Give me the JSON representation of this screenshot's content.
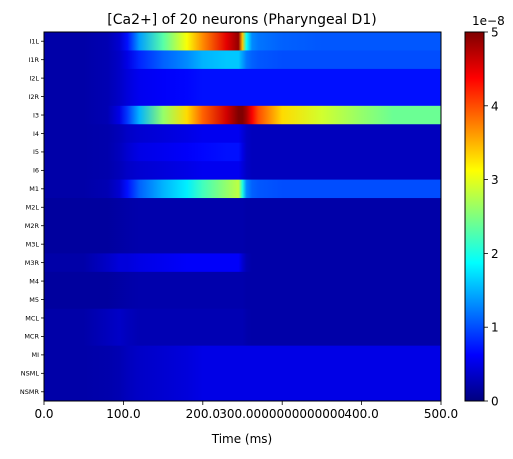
{
  "chart_data": {
    "type": "heatmap",
    "title": "[Ca2+] of 20 neurons (Pharyngeal D1)",
    "xlabel": "Time (ms)",
    "ylabel": "",
    "xlim": [
      0,
      500
    ],
    "x_ticks": [
      0,
      100,
      200,
      300,
      400,
      500
    ],
    "x_tick_labels": [
      "0.0",
      "100.0",
      "200.0",
      "300.0000000000000",
      "400.0",
      "500.0"
    ],
    "neurons": [
      "I1L",
      "I1R",
      "I2L",
      "I2R",
      "I3",
      "I4",
      "I5",
      "I6",
      "M1",
      "M2L",
      "M2R",
      "M3L",
      "M3R",
      "M4",
      "M5",
      "MCL",
      "MCR",
      "MI",
      "NSML",
      "NSMR"
    ],
    "colorbar": {
      "colormap": "jet",
      "range": [
        0,
        5e-08
      ],
      "ticks": [
        0,
        1,
        2,
        3,
        4,
        5
      ],
      "tick_labels": [
        "0",
        "1",
        "2",
        "3",
        "4",
        "5"
      ],
      "offset_label": "1e−8"
    },
    "value_scale": 1e-08,
    "sample_times_ms": [
      0,
      50,
      80,
      95,
      105,
      120,
      150,
      180,
      200,
      230,
      245,
      250,
      255,
      262,
      270,
      300,
      350,
      400,
      440,
      470,
      500
    ],
    "values": [
      [
        0.2,
        0.2,
        0.25,
        0.4,
        0.7,
        1.4,
        2.3,
        3.1,
        3.7,
        4.5,
        4.9,
        3.4,
        1.9,
        1.3,
        1.2,
        1.1,
        1.05,
        1.05,
        1.05,
        1.05,
        1.05
      ],
      [
        0.2,
        0.2,
        0.25,
        0.35,
        0.5,
        0.8,
        1.1,
        1.3,
        1.5,
        1.6,
        1.6,
        1.4,
        1.2,
        1.1,
        1.05,
        1.0,
        1.0,
        1.0,
        1.0,
        1.0,
        1.0
      ],
      [
        0.2,
        0.2,
        0.25,
        0.35,
        0.45,
        0.55,
        0.6,
        0.65,
        0.7,
        0.7,
        0.7,
        0.7,
        0.7,
        0.7,
        0.7,
        0.7,
        0.7,
        0.7,
        0.7,
        0.7,
        0.7
      ],
      [
        0.2,
        0.2,
        0.25,
        0.35,
        0.45,
        0.55,
        0.6,
        0.65,
        0.7,
        0.7,
        0.7,
        0.7,
        0.7,
        0.7,
        0.7,
        0.7,
        0.7,
        0.7,
        0.7,
        0.7,
        0.7
      ],
      [
        0.2,
        0.2,
        0.25,
        0.5,
        0.9,
        1.5,
        2.6,
        3.3,
        3.9,
        4.6,
        5.0,
        5.0,
        4.8,
        4.4,
        4.0,
        3.3,
        2.9,
        2.6,
        2.4,
        2.4,
        2.4
      ],
      [
        0.2,
        0.2,
        0.22,
        0.28,
        0.35,
        0.4,
        0.45,
        0.5,
        0.55,
        0.55,
        0.55,
        0.45,
        0.35,
        0.3,
        0.3,
        0.3,
        0.3,
        0.3,
        0.3,
        0.3,
        0.3
      ],
      [
        0.2,
        0.2,
        0.22,
        0.3,
        0.4,
        0.5,
        0.55,
        0.6,
        0.65,
        0.7,
        0.7,
        0.5,
        0.35,
        0.3,
        0.3,
        0.3,
        0.3,
        0.3,
        0.3,
        0.3,
        0.3
      ],
      [
        0.2,
        0.2,
        0.22,
        0.28,
        0.35,
        0.4,
        0.45,
        0.5,
        0.55,
        0.55,
        0.55,
        0.45,
        0.35,
        0.3,
        0.3,
        0.3,
        0.3,
        0.3,
        0.3,
        0.3,
        0.3
      ],
      [
        0.2,
        0.2,
        0.25,
        0.4,
        0.7,
        1.1,
        1.5,
        1.8,
        2.2,
        2.6,
        2.8,
        2.0,
        1.3,
        1.1,
        1.05,
        1.0,
        1.0,
        1.0,
        1.0,
        1.0,
        1.0
      ],
      [
        0.15,
        0.15,
        0.15,
        0.18,
        0.2,
        0.22,
        0.22,
        0.22,
        0.22,
        0.22,
        0.22,
        0.22,
        0.2,
        0.2,
        0.2,
        0.2,
        0.2,
        0.2,
        0.2,
        0.2,
        0.2
      ],
      [
        0.15,
        0.15,
        0.15,
        0.18,
        0.2,
        0.22,
        0.22,
        0.22,
        0.22,
        0.22,
        0.22,
        0.22,
        0.2,
        0.2,
        0.2,
        0.2,
        0.2,
        0.2,
        0.2,
        0.2,
        0.2
      ],
      [
        0.15,
        0.15,
        0.15,
        0.18,
        0.2,
        0.22,
        0.22,
        0.22,
        0.22,
        0.22,
        0.22,
        0.22,
        0.2,
        0.2,
        0.2,
        0.2,
        0.2,
        0.2,
        0.2,
        0.2,
        0.2
      ],
      [
        0.2,
        0.2,
        0.35,
        0.45,
        0.45,
        0.5,
        0.55,
        0.6,
        0.6,
        0.6,
        0.6,
        0.4,
        0.25,
        0.2,
        0.2,
        0.2,
        0.2,
        0.2,
        0.2,
        0.2,
        0.2
      ],
      [
        0.15,
        0.15,
        0.15,
        0.18,
        0.2,
        0.22,
        0.22,
        0.22,
        0.22,
        0.22,
        0.22,
        0.22,
        0.2,
        0.2,
        0.2,
        0.2,
        0.2,
        0.2,
        0.2,
        0.2,
        0.2
      ],
      [
        0.15,
        0.15,
        0.15,
        0.18,
        0.2,
        0.22,
        0.22,
        0.22,
        0.22,
        0.22,
        0.22,
        0.22,
        0.2,
        0.2,
        0.2,
        0.2,
        0.2,
        0.2,
        0.2,
        0.2,
        0.2
      ],
      [
        0.2,
        0.2,
        0.3,
        0.35,
        0.3,
        0.25,
        0.25,
        0.25,
        0.25,
        0.25,
        0.25,
        0.25,
        0.22,
        0.2,
        0.2,
        0.2,
        0.2,
        0.2,
        0.2,
        0.2,
        0.2
      ],
      [
        0.2,
        0.2,
        0.3,
        0.35,
        0.3,
        0.25,
        0.25,
        0.25,
        0.25,
        0.25,
        0.25,
        0.25,
        0.22,
        0.2,
        0.2,
        0.2,
        0.2,
        0.2,
        0.2,
        0.2,
        0.2
      ],
      [
        0.2,
        0.2,
        0.22,
        0.25,
        0.3,
        0.35,
        0.4,
        0.45,
        0.5,
        0.5,
        0.5,
        0.5,
        0.5,
        0.5,
        0.5,
        0.5,
        0.5,
        0.5,
        0.5,
        0.5,
        0.5
      ],
      [
        0.2,
        0.2,
        0.22,
        0.25,
        0.3,
        0.35,
        0.4,
        0.45,
        0.5,
        0.5,
        0.5,
        0.5,
        0.5,
        0.5,
        0.5,
        0.5,
        0.5,
        0.5,
        0.5,
        0.5,
        0.5
      ],
      [
        0.2,
        0.2,
        0.22,
        0.25,
        0.3,
        0.35,
        0.4,
        0.45,
        0.5,
        0.5,
        0.5,
        0.5,
        0.5,
        0.5,
        0.5,
        0.5,
        0.5,
        0.5,
        0.5,
        0.5,
        0.5
      ]
    ]
  }
}
